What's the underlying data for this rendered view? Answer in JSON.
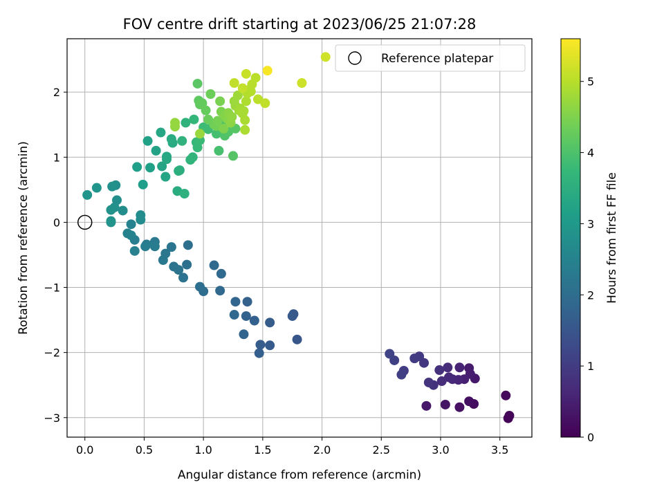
{
  "chart_data": {
    "type": "scatter",
    "title": "FOV centre drift starting at 2023/06/25 21:07:28",
    "xlabel": "Angular distance from reference (arcmin)",
    "ylabel": "Rotation from reference (arcmin)",
    "xlim": [
      -0.15,
      3.77
    ],
    "ylim": [
      -3.3,
      2.82
    ],
    "xticks": [
      0.0,
      0.5,
      1.0,
      1.5,
      2.0,
      2.5,
      3.0,
      3.5
    ],
    "xtick_labels": [
      "0.0",
      "0.5",
      "1.0",
      "1.5",
      "2.0",
      "2.5",
      "3.0",
      "3.5"
    ],
    "yticks": [
      -3,
      -2,
      -1,
      0,
      1,
      2
    ],
    "ytick_labels": [
      "−3",
      "−2",
      "−1",
      "0",
      "1",
      "2"
    ],
    "grid": true,
    "legend": {
      "position": "top-right",
      "entries": [
        "Reference platepar"
      ]
    },
    "reference_point": {
      "x": 0.0,
      "y": 0.0,
      "label": "Reference platepar"
    },
    "colorbar": {
      "label": "Hours from first FF file",
      "range": [
        0,
        5.6
      ],
      "ticks": [
        0,
        1,
        2,
        3,
        4,
        5
      ],
      "colormap": "viridis",
      "colors": [
        "#440154",
        "#482878",
        "#3e4989",
        "#31688e",
        "#26828e",
        "#1f9e89",
        "#35b779",
        "#6ece58",
        "#b5de2b",
        "#fde725"
      ]
    },
    "points": [
      {
        "x": 3.57,
        "y": -3.01,
        "t": 0.05
      },
      {
        "x": 3.58,
        "y": -2.97,
        "t": 0.08
      },
      {
        "x": 3.55,
        "y": -2.66,
        "t": 0.12
      },
      {
        "x": 3.28,
        "y": -2.79,
        "t": 0.18
      },
      {
        "x": 3.24,
        "y": -2.75,
        "t": 0.22
      },
      {
        "x": 3.16,
        "y": -2.84,
        "t": 0.26
      },
      {
        "x": 3.04,
        "y": -2.8,
        "t": 0.3
      },
      {
        "x": 2.88,
        "y": -2.82,
        "t": 0.34
      },
      {
        "x": 3.29,
        "y": -2.4,
        "t": 0.38
      },
      {
        "x": 3.24,
        "y": -2.24,
        "t": 0.42
      },
      {
        "x": 3.25,
        "y": -2.33,
        "t": 0.46
      },
      {
        "x": 3.2,
        "y": -2.41,
        "t": 0.5
      },
      {
        "x": 3.16,
        "y": -2.23,
        "t": 0.54
      },
      {
        "x": 3.15,
        "y": -2.42,
        "t": 0.58
      },
      {
        "x": 3.1,
        "y": -2.41,
        "t": 0.62
      },
      {
        "x": 3.07,
        "y": -2.38,
        "t": 0.66
      },
      {
        "x": 3.06,
        "y": -2.23,
        "t": 0.7
      },
      {
        "x": 3.01,
        "y": -2.44,
        "t": 0.74
      },
      {
        "x": 2.99,
        "y": -2.27,
        "t": 0.78
      },
      {
        "x": 2.94,
        "y": -2.5,
        "t": 0.82
      },
      {
        "x": 2.9,
        "y": -2.46,
        "t": 0.86
      },
      {
        "x": 2.86,
        "y": -2.16,
        "t": 0.9
      },
      {
        "x": 2.82,
        "y": -2.06,
        "t": 0.94
      },
      {
        "x": 2.78,
        "y": -2.09,
        "t": 0.98
      },
      {
        "x": 2.69,
        "y": -2.28,
        "t": 1.02
      },
      {
        "x": 2.67,
        "y": -2.34,
        "t": 1.06
      },
      {
        "x": 2.61,
        "y": -2.12,
        "t": 1.1
      },
      {
        "x": 2.57,
        "y": -2.02,
        "t": 1.14
      },
      {
        "x": 1.79,
        "y": -1.8,
        "t": 1.5
      },
      {
        "x": 1.76,
        "y": -1.41,
        "t": 1.53
      },
      {
        "x": 1.75,
        "y": -1.44,
        "t": 1.56
      },
      {
        "x": 1.56,
        "y": -1.89,
        "t": 1.59
      },
      {
        "x": 1.56,
        "y": -1.54,
        "t": 1.62
      },
      {
        "x": 1.48,
        "y": -1.88,
        "t": 1.65
      },
      {
        "x": 1.47,
        "y": -2.01,
        "t": 1.68
      },
      {
        "x": 1.43,
        "y": -1.51,
        "t": 1.71
      },
      {
        "x": 1.37,
        "y": -1.22,
        "t": 1.74
      },
      {
        "x": 1.36,
        "y": -1.44,
        "t": 1.77
      },
      {
        "x": 1.34,
        "y": -1.72,
        "t": 1.8
      },
      {
        "x": 1.27,
        "y": -1.22,
        "t": 1.83
      },
      {
        "x": 1.26,
        "y": -1.42,
        "t": 1.86
      },
      {
        "x": 1.14,
        "y": -1.05,
        "t": 1.89
      },
      {
        "x": 1.15,
        "y": -0.79,
        "t": 1.92
      },
      {
        "x": 1.09,
        "y": -0.66,
        "t": 1.95
      },
      {
        "x": 1.0,
        "y": -1.06,
        "t": 1.98
      },
      {
        "x": 0.97,
        "y": -0.99,
        "t": 2.01
      },
      {
        "x": 0.87,
        "y": -0.35,
        "t": 2.04
      },
      {
        "x": 0.86,
        "y": -0.65,
        "t": 2.07
      },
      {
        "x": 0.83,
        "y": -0.85,
        "t": 2.1
      },
      {
        "x": 0.79,
        "y": -0.73,
        "t": 2.13
      },
      {
        "x": 0.75,
        "y": -0.68,
        "t": 2.16
      },
      {
        "x": 0.73,
        "y": -0.38,
        "t": 2.19
      },
      {
        "x": 0.68,
        "y": -0.48,
        "t": 2.22
      },
      {
        "x": 0.66,
        "y": -0.58,
        "t": 2.25
      },
      {
        "x": 0.59,
        "y": -0.3,
        "t": 2.28
      },
      {
        "x": 0.59,
        "y": -0.37,
        "t": 2.31
      },
      {
        "x": 0.52,
        "y": -0.34,
        "t": 2.34
      },
      {
        "x": 0.51,
        "y": -0.37,
        "t": 2.37
      },
      {
        "x": 0.42,
        "y": -0.27,
        "t": 2.4
      },
      {
        "x": 0.42,
        "y": -0.44,
        "t": 2.43
      },
      {
        "x": 0.39,
        "y": -0.2,
        "t": 2.46
      },
      {
        "x": 0.39,
        "y": -0.03,
        "t": 2.49
      },
      {
        "x": 0.36,
        "y": -0.17,
        "t": 2.52
      },
      {
        "x": 0.47,
        "y": 0.04,
        "t": 2.7
      },
      {
        "x": 0.47,
        "y": 0.11,
        "t": 2.72
      },
      {
        "x": 0.32,
        "y": 0.18,
        "t": 2.74
      },
      {
        "x": 0.27,
        "y": 0.34,
        "t": 2.76
      },
      {
        "x": 0.26,
        "y": 0.57,
        "t": 2.78
      },
      {
        "x": 0.25,
        "y": 0.23,
        "t": 2.8
      },
      {
        "x": 0.23,
        "y": 0.55,
        "t": 2.82
      },
      {
        "x": 0.22,
        "y": 0.19,
        "t": 2.84
      },
      {
        "x": 0.22,
        "y": 0.02,
        "t": 2.86
      },
      {
        "x": 0.22,
        "y": 0.0,
        "t": 2.88
      },
      {
        "x": 0.1,
        "y": 0.53,
        "t": 2.9
      },
      {
        "x": 0.02,
        "y": 0.42,
        "t": 2.92
      },
      {
        "x": 0.49,
        "y": 0.58,
        "t": 3.1
      },
      {
        "x": 0.44,
        "y": 0.85,
        "t": 3.13
      },
      {
        "x": 0.55,
        "y": 0.84,
        "t": 3.16
      },
      {
        "x": 0.53,
        "y": 1.25,
        "t": 3.19
      },
      {
        "x": 0.6,
        "y": 1.1,
        "t": 3.22
      },
      {
        "x": 0.65,
        "y": 0.86,
        "t": 3.25
      },
      {
        "x": 0.68,
        "y": 0.7,
        "t": 3.28
      },
      {
        "x": 0.64,
        "y": 1.38,
        "t": 3.31
      },
      {
        "x": 0.69,
        "y": 1.01,
        "t": 3.34
      },
      {
        "x": 0.69,
        "y": 0.97,
        "t": 3.37
      },
      {
        "x": 0.74,
        "y": 1.22,
        "t": 3.4
      },
      {
        "x": 0.73,
        "y": 1.28,
        "t": 3.43
      },
      {
        "x": 0.78,
        "y": 0.48,
        "t": 3.46
      },
      {
        "x": 0.8,
        "y": 0.8,
        "t": 3.49
      },
      {
        "x": 0.79,
        "y": 0.79,
        "t": 3.52
      },
      {
        "x": 0.84,
        "y": 0.44,
        "t": 3.55
      },
      {
        "x": 0.82,
        "y": 1.25,
        "t": 3.58
      },
      {
        "x": 0.85,
        "y": 1.53,
        "t": 3.61
      },
      {
        "x": 0.89,
        "y": 0.96,
        "t": 3.64
      },
      {
        "x": 0.91,
        "y": 1.0,
        "t": 3.67
      },
      {
        "x": 0.92,
        "y": 1.58,
        "t": 3.7
      },
      {
        "x": 0.94,
        "y": 1.23,
        "t": 3.73
      },
      {
        "x": 0.95,
        "y": 1.15,
        "t": 3.76
      },
      {
        "x": 0.97,
        "y": 1.26,
        "t": 3.79
      },
      {
        "x": 1.0,
        "y": 1.46,
        "t": 3.82
      },
      {
        "x": 1.04,
        "y": 1.43,
        "t": 3.85
      },
      {
        "x": 1.08,
        "y": 1.51,
        "t": 3.88
      },
      {
        "x": 1.11,
        "y": 1.36,
        "t": 3.91
      },
      {
        "x": 1.13,
        "y": 1.1,
        "t": 3.94
      },
      {
        "x": 1.14,
        "y": 1.47,
        "t": 3.97
      },
      {
        "x": 1.16,
        "y": 1.56,
        "t": 4.0
      },
      {
        "x": 1.18,
        "y": 1.33,
        "t": 4.03
      },
      {
        "x": 1.21,
        "y": 1.39,
        "t": 4.06
      },
      {
        "x": 1.25,
        "y": 1.02,
        "t": 4.09
      },
      {
        "x": 1.27,
        "y": 1.44,
        "t": 4.12
      },
      {
        "x": 0.95,
        "y": 2.13,
        "t": 4.15
      },
      {
        "x": 0.96,
        "y": 1.87,
        "t": 4.18
      },
      {
        "x": 0.97,
        "y": 1.81,
        "t": 4.21
      },
      {
        "x": 0.99,
        "y": 1.83,
        "t": 4.24
      },
      {
        "x": 1.02,
        "y": 1.72,
        "t": 4.27
      },
      {
        "x": 1.04,
        "y": 1.58,
        "t": 4.3
      },
      {
        "x": 1.06,
        "y": 1.97,
        "t": 4.33
      },
      {
        "x": 1.09,
        "y": 1.5,
        "t": 4.36
      },
      {
        "x": 1.11,
        "y": 1.48,
        "t": 4.39
      },
      {
        "x": 1.12,
        "y": 1.56,
        "t": 4.42
      },
      {
        "x": 1.14,
        "y": 1.86,
        "t": 4.45
      },
      {
        "x": 1.15,
        "y": 1.7,
        "t": 4.48
      },
      {
        "x": 1.17,
        "y": 1.44,
        "t": 4.51
      },
      {
        "x": 1.18,
        "y": 1.64,
        "t": 4.54
      },
      {
        "x": 1.2,
        "y": 1.59,
        "t": 4.57
      },
      {
        "x": 1.21,
        "y": 1.68,
        "t": 4.6
      },
      {
        "x": 1.23,
        "y": 1.53,
        "t": 4.63
      },
      {
        "x": 1.24,
        "y": 1.62,
        "t": 4.66
      },
      {
        "x": 0.76,
        "y": 1.47,
        "t": 4.68
      },
      {
        "x": 0.76,
        "y": 1.53,
        "t": 4.7
      },
      {
        "x": 0.97,
        "y": 1.36,
        "t": 4.72
      },
      {
        "x": 1.26,
        "y": 1.86,
        "t": 4.74
      },
      {
        "x": 1.27,
        "y": 1.79,
        "t": 4.76
      },
      {
        "x": 1.29,
        "y": 1.95,
        "t": 4.78
      },
      {
        "x": 1.3,
        "y": 1.72,
        "t": 4.8
      },
      {
        "x": 1.31,
        "y": 1.75,
        "t": 4.82
      },
      {
        "x": 1.33,
        "y": 1.67,
        "t": 4.84
      },
      {
        "x": 1.34,
        "y": 1.71,
        "t": 4.86
      },
      {
        "x": 1.35,
        "y": 1.57,
        "t": 4.88
      },
      {
        "x": 1.35,
        "y": 1.42,
        "t": 4.9
      },
      {
        "x": 1.36,
        "y": 1.86,
        "t": 4.92
      },
      {
        "x": 1.37,
        "y": 1.98,
        "t": 4.94
      },
      {
        "x": 1.39,
        "y": 2.04,
        "t": 4.96
      },
      {
        "x": 1.4,
        "y": 2.01,
        "t": 4.98
      },
      {
        "x": 1.41,
        "y": 2.12,
        "t": 5.0
      },
      {
        "x": 1.44,
        "y": 2.22,
        "t": 5.02
      },
      {
        "x": 1.46,
        "y": 1.89,
        "t": 5.04
      },
      {
        "x": 1.52,
        "y": 1.83,
        "t": 5.06
      },
      {
        "x": 1.26,
        "y": 2.14,
        "t": 5.08
      },
      {
        "x": 1.33,
        "y": 2.06,
        "t": 5.1
      },
      {
        "x": 1.36,
        "y": 2.28,
        "t": 5.15
      },
      {
        "x": 1.83,
        "y": 2.14,
        "t": 5.18
      },
      {
        "x": 2.03,
        "y": 2.54,
        "t": 5.2
      },
      {
        "x": 1.54,
        "y": 2.33,
        "t": 5.55
      }
    ]
  }
}
